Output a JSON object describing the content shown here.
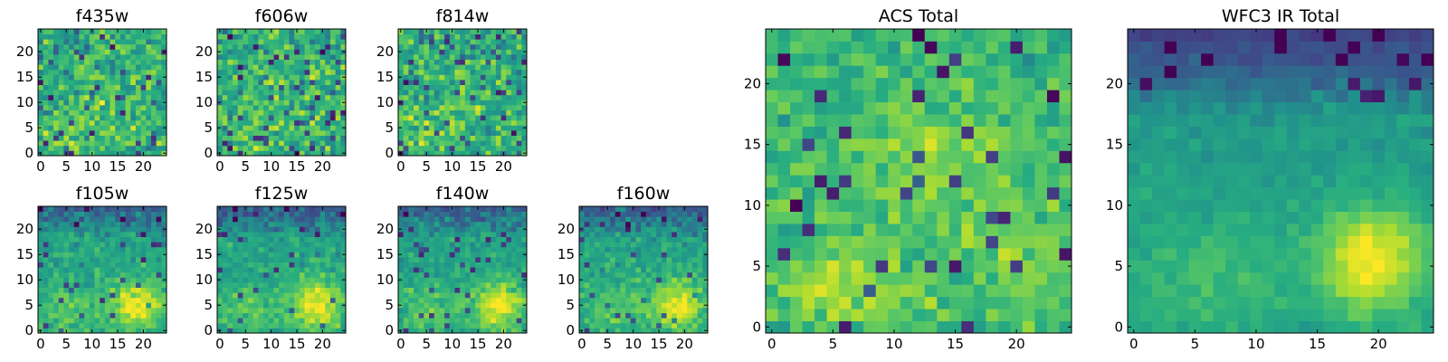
{
  "chart_data": [
    {
      "type": "heatmap",
      "id": "f435w",
      "title": "f435w",
      "x": {
        "ticks": [
          0,
          5,
          10,
          15,
          20
        ],
        "range": [
          -0.5,
          24.5
        ]
      },
      "y": {
        "ticks": [
          0,
          5,
          10,
          15,
          20
        ],
        "range": [
          -0.5,
          24.5
        ]
      },
      "grid_size": [
        25,
        25
      ],
      "colormap": "viridis",
      "pattern": "noisy",
      "seed": 11
    },
    {
      "type": "heatmap",
      "id": "f606w",
      "title": "f606w",
      "x": {
        "ticks": [
          0,
          5,
          10,
          15,
          20
        ],
        "range": [
          -0.5,
          24.5
        ]
      },
      "y": {
        "ticks": [
          0,
          5,
          10,
          15,
          20
        ],
        "range": [
          -0.5,
          24.5
        ]
      },
      "grid_size": [
        25,
        25
      ],
      "colormap": "viridis",
      "pattern": "noisy",
      "seed": 23
    },
    {
      "type": "heatmap",
      "id": "f814w",
      "title": "f814w",
      "x": {
        "ticks": [
          0,
          5,
          10,
          15,
          20
        ],
        "range": [
          -0.5,
          24.5
        ]
      },
      "y": {
        "ticks": [
          0,
          5,
          10,
          15,
          20
        ],
        "range": [
          -0.5,
          24.5
        ]
      },
      "grid_size": [
        25,
        25
      ],
      "colormap": "viridis",
      "pattern": "noisy",
      "seed": 37
    },
    {
      "type": "heatmap",
      "id": "f105w",
      "title": "f105w",
      "x": {
        "ticks": [
          0,
          5,
          10,
          15,
          20
        ],
        "range": [
          -0.5,
          24.5
        ]
      },
      "y": {
        "ticks": [
          0,
          5,
          10,
          15,
          20
        ],
        "range": [
          -0.5,
          24.5
        ]
      },
      "grid_size": [
        25,
        25
      ],
      "colormap": "viridis",
      "pattern": "ir",
      "seed": 41
    },
    {
      "type": "heatmap",
      "id": "f125w",
      "title": "f125w",
      "x": {
        "ticks": [
          0,
          5,
          10,
          15,
          20
        ],
        "range": [
          -0.5,
          24.5
        ]
      },
      "y": {
        "ticks": [
          0,
          5,
          10,
          15,
          20
        ],
        "range": [
          -0.5,
          24.5
        ]
      },
      "grid_size": [
        25,
        25
      ],
      "colormap": "viridis",
      "pattern": "ir",
      "seed": 53
    },
    {
      "type": "heatmap",
      "id": "f140w",
      "title": "f140w",
      "x": {
        "ticks": [
          0,
          5,
          10,
          15,
          20
        ],
        "range": [
          -0.5,
          24.5
        ]
      },
      "y": {
        "ticks": [
          0,
          5,
          10,
          15,
          20
        ],
        "range": [
          -0.5,
          24.5
        ]
      },
      "grid_size": [
        25,
        25
      ],
      "colormap": "viridis",
      "pattern": "ir",
      "seed": 67
    },
    {
      "type": "heatmap",
      "id": "f160w",
      "title": "f160w",
      "x": {
        "ticks": [
          0,
          5,
          10,
          15,
          20
        ],
        "range": [
          -0.5,
          24.5
        ]
      },
      "y": {
        "ticks": [
          0,
          5,
          10,
          15,
          20
        ],
        "range": [
          -0.5,
          24.5
        ]
      },
      "grid_size": [
        25,
        25
      ],
      "colormap": "viridis",
      "pattern": "ir",
      "seed": 79
    },
    {
      "type": "heatmap",
      "id": "acs_total",
      "title": "ACS Total",
      "x": {
        "ticks": [
          0,
          5,
          10,
          15,
          20
        ],
        "range": [
          -0.5,
          24.5
        ]
      },
      "y": {
        "ticks": [
          0,
          5,
          10,
          15,
          20
        ],
        "range": [
          -0.5,
          24.5
        ]
      },
      "grid_size": [
        25,
        25
      ],
      "colormap": "viridis",
      "pattern": "acs",
      "seed": 97
    },
    {
      "type": "heatmap",
      "id": "wfc3_total",
      "title": "WFC3 IR Total",
      "x": {
        "ticks": [
          0,
          5,
          10,
          15,
          20
        ],
        "range": [
          -0.5,
          24.5
        ]
      },
      "y": {
        "ticks": [
          0,
          5,
          10,
          15,
          20
        ],
        "range": [
          -0.5,
          24.5
        ]
      },
      "grid_size": [
        25,
        25
      ],
      "colormap": "viridis",
      "pattern": "ir_total",
      "seed": 101
    }
  ]
}
